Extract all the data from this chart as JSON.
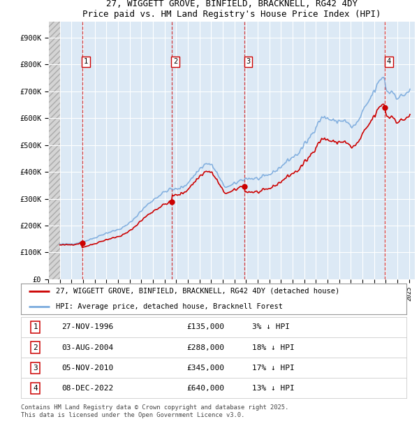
{
  "title1": "27, WIGGETT GROVE, BINFIELD, BRACKNELL, RG42 4DY",
  "title2": "Price paid vs. HM Land Registry's House Price Index (HPI)",
  "xlim_start": 1994.0,
  "xlim_end": 2025.5,
  "ylim_min": 0,
  "ylim_max": 960000,
  "price_color": "#cc0000",
  "sale_dates": [
    1996.91,
    2004.59,
    2010.84,
    2022.93
  ],
  "sale_prices": [
    135000,
    288000,
    345000,
    640000
  ],
  "sale_labels": [
    "1",
    "2",
    "3",
    "4"
  ],
  "legend_price_label": "27, WIGGETT GROVE, BINFIELD, BRACKNELL, RG42 4DY (detached house)",
  "legend_hpi_label": "HPI: Average price, detached house, Bracknell Forest",
  "table_rows": [
    [
      "1",
      "27-NOV-1996",
      "£135,000",
      "3% ↓ HPI"
    ],
    [
      "2",
      "03-AUG-2004",
      "£288,000",
      "18% ↓ HPI"
    ],
    [
      "3",
      "05-NOV-2010",
      "£345,000",
      "17% ↓ HPI"
    ],
    [
      "4",
      "08-DEC-2022",
      "£640,000",
      "13% ↓ HPI"
    ]
  ],
  "footer": "Contains HM Land Registry data © Crown copyright and database right 2025.\nThis data is licensed under the Open Government Licence v3.0.",
  "background_color": "#dce9f5",
  "grid_color": "#ffffff",
  "yticks": [
    0,
    100000,
    200000,
    300000,
    400000,
    500000,
    600000,
    700000,
    800000,
    900000
  ],
  "ytick_labels": [
    "£0",
    "£100K",
    "£200K",
    "£300K",
    "£400K",
    "£500K",
    "£600K",
    "£700K",
    "£800K",
    "£900K"
  ],
  "hpi_line_color": "#7aaadd",
  "hatch_fill_color": "#d0d0d0"
}
